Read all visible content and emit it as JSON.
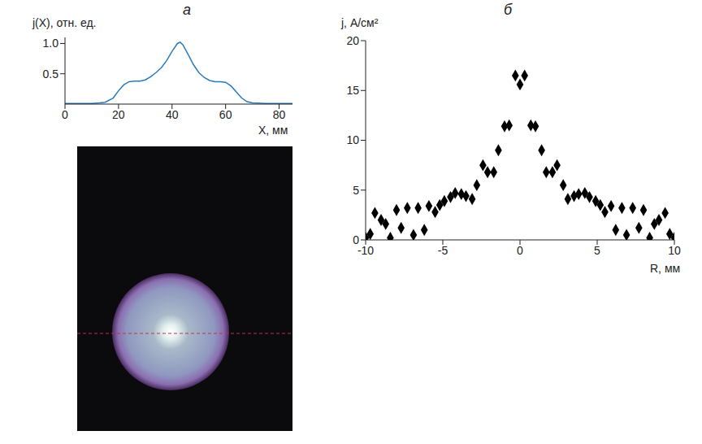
{
  "chart_data": [
    {
      "type": "line",
      "title": "а",
      "y_label": "j(X), отн. ед.",
      "x_label": "X, мм",
      "x": [
        0,
        5,
        10,
        13,
        15,
        18,
        20,
        22,
        24,
        26,
        28,
        30,
        32,
        34,
        36,
        38,
        40,
        42,
        43,
        44,
        46,
        48,
        50,
        52,
        54,
        56,
        58,
        60,
        62,
        64,
        66,
        68,
        70,
        75,
        80,
        85
      ],
      "values": [
        0.01,
        0.01,
        0.01,
        0.02,
        0.03,
        0.1,
        0.22,
        0.32,
        0.37,
        0.38,
        0.38,
        0.4,
        0.45,
        0.52,
        0.6,
        0.72,
        0.87,
        1.0,
        1.02,
        0.98,
        0.82,
        0.65,
        0.52,
        0.44,
        0.39,
        0.37,
        0.37,
        0.36,
        0.3,
        0.2,
        0.1,
        0.04,
        0.02,
        0.01,
        0.01,
        0.01
      ],
      "color": "#2b7bba",
      "xlim": [
        0,
        85
      ],
      "xticks": [
        0,
        20,
        40,
        60,
        80
      ],
      "ylim": [
        0,
        1.1
      ],
      "yticks": [
        {
          "value": 0.5,
          "label": "0.5"
        },
        {
          "value": 1,
          "label": "1.0"
        }
      ],
      "grid": false
    },
    {
      "type": "scatter",
      "title": "б",
      "y_label": "j, А/см²",
      "x_label": "R, мм",
      "x": [
        -10,
        -9.7,
        -9.4,
        -9,
        -8.7,
        -8.4,
        -8,
        -7.7,
        -7.3,
        -6.9,
        -6.6,
        -6.2,
        -5.9,
        -5.5,
        -5.2,
        -4.9,
        -4.5,
        -4.2,
        -3.8,
        -3.5,
        -3.1,
        -2.8,
        -2.4,
        -2.1,
        -1.7,
        -1.4,
        -1,
        -0.7,
        -0.3,
        0,
        0.3,
        0.7,
        1,
        1.4,
        1.7,
        2.1,
        2.4,
        2.8,
        3.1,
        3.5,
        3.8,
        4.2,
        4.5,
        4.9,
        5.2,
        5.5,
        5.9,
        6.2,
        6.6,
        6.9,
        7.3,
        7.7,
        8,
        8.4,
        8.7,
        9,
        9.4,
        9.7,
        10
      ],
      "values": [
        0.2,
        0.6,
        2.7,
        2,
        1.6,
        0.2,
        3,
        1.2,
        3.2,
        0.5,
        3.2,
        1,
        3.4,
        2.8,
        3.5,
        3.9,
        4.3,
        4.7,
        4.6,
        4.4,
        4.1,
        5.5,
        7.5,
        6.8,
        6.8,
        9,
        11.4,
        11.5,
        16.5,
        15.6,
        16.5,
        11.5,
        11.4,
        9,
        6.8,
        6.8,
        7.5,
        5.5,
        4.1,
        4.4,
        4.6,
        4.7,
        4.3,
        3.9,
        3.5,
        2.8,
        3.4,
        1,
        3.2,
        0.5,
        3.2,
        1.2,
        3,
        0.2,
        1.6,
        2,
        2.7,
        0.6,
        0.2
      ],
      "color": "#000000",
      "marker": "diamond",
      "xlim": [
        -10,
        10
      ],
      "xticks": [
        -10,
        -5,
        0,
        5,
        10
      ],
      "ylim": [
        0,
        20
      ],
      "yticks": [
        0,
        5,
        10,
        15,
        20
      ],
      "grid": false
    }
  ]
}
